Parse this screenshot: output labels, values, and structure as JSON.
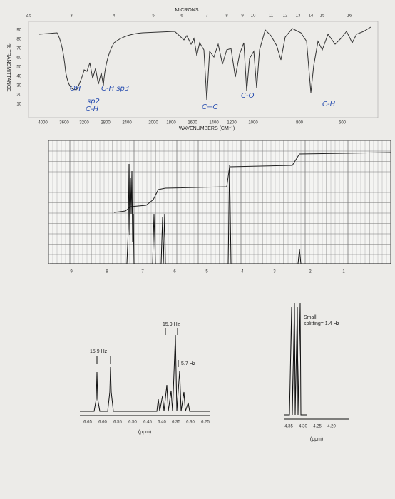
{
  "ir": {
    "top_axis_title": "MICRONS",
    "top_ticks": [
      "2.5",
      "3",
      "4",
      "5",
      "6",
      "7",
      "8",
      "9",
      "10",
      "11",
      "12",
      "13",
      "14",
      "15",
      "16"
    ],
    "y_axis_title": "% TRANSMITTANCE",
    "y_ticks": [
      "90",
      "80",
      "70",
      "60",
      "50",
      "40",
      "30",
      "20",
      "10"
    ],
    "x_ticks": [
      "4000",
      "3600",
      "3200",
      "2800",
      "2400",
      "2000",
      "1800",
      "1600",
      "1400",
      "1200",
      "1000",
      "800",
      "600"
    ],
    "x_axis_title": "WAVENUMBERS (CM⁻¹)",
    "annotations": [
      "OH",
      "C-H sp3",
      "sp2",
      "C-H",
      "C=C",
      "C-O",
      "C-H"
    ]
  },
  "nmr": {
    "x_ticks": [
      "9",
      "8",
      "7",
      "6",
      "5",
      "4",
      "3",
      "2",
      "1"
    ]
  },
  "expansion_1": {
    "labels": [
      "15.9 Hz",
      "15.9 Hz",
      "5.7 Hz"
    ],
    "x_ticks": [
      "6.65",
      "6.60",
      "6.55",
      "6.50",
      "6.45",
      "6.40",
      "6.35",
      "6.30",
      "6.25"
    ],
    "x_axis_title": "(ppm)"
  },
  "expansion_2": {
    "note": [
      "Small",
      "splitting= 1.4 Hz"
    ],
    "x_ticks": [
      "4.35",
      "4.30",
      "4.25",
      "4.20"
    ],
    "x_axis_title": "(ppm)"
  }
}
